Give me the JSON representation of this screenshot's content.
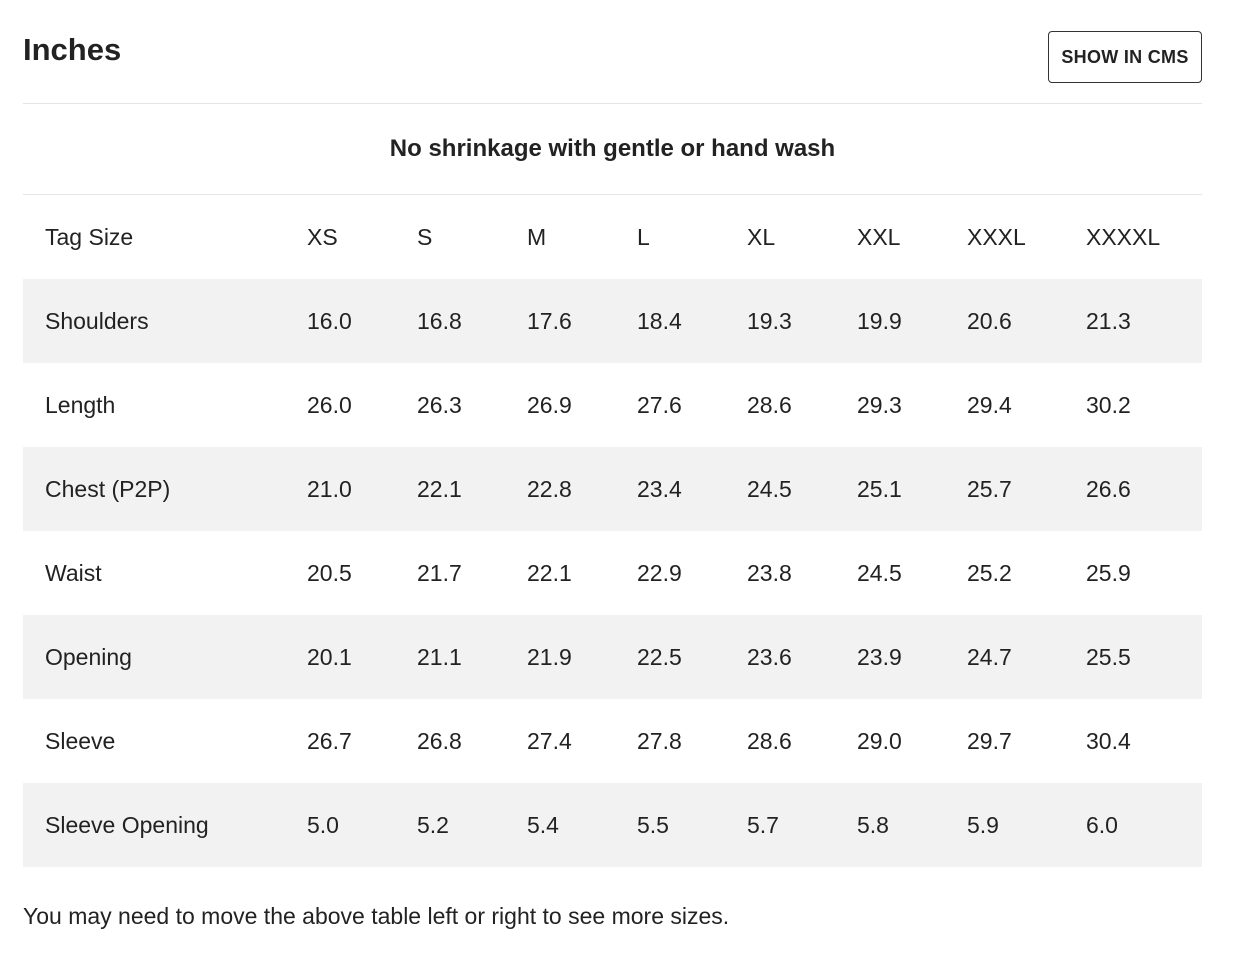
{
  "header": {
    "title": "Inches",
    "cms_button_label": "SHOW IN CMS"
  },
  "note": "No shrinkage with gentle or hand wash",
  "table": {
    "header_label": "Tag Size",
    "sizes": [
      "XS",
      "S",
      "M",
      "L",
      "XL",
      "XXL",
      "XXXL",
      "XXXXL"
    ],
    "rows": [
      {
        "label": "Shoulders",
        "values": [
          "16.0",
          "16.8",
          "17.6",
          "18.4",
          "19.3",
          "19.9",
          "20.6",
          "21.3"
        ]
      },
      {
        "label": "Length",
        "values": [
          "26.0",
          "26.3",
          "26.9",
          "27.6",
          "28.6",
          "29.3",
          "29.4",
          "30.2"
        ]
      },
      {
        "label": "Chest (P2P)",
        "values": [
          "21.0",
          "22.1",
          "22.8",
          "23.4",
          "24.5",
          "25.1",
          "25.7",
          "26.6"
        ]
      },
      {
        "label": "Waist",
        "values": [
          "20.5",
          "21.7",
          "22.1",
          "22.9",
          "23.8",
          "24.5",
          "25.2",
          "25.9"
        ]
      },
      {
        "label": "Opening",
        "values": [
          "20.1",
          "21.1",
          "21.9",
          "22.5",
          "23.6",
          "23.9",
          "24.7",
          "25.5"
        ]
      },
      {
        "label": "Sleeve",
        "values": [
          "26.7",
          "26.8",
          "27.4",
          "27.8",
          "28.6",
          "29.0",
          "29.7",
          "30.4"
        ]
      },
      {
        "label": "Sleeve Opening",
        "values": [
          "5.0",
          "5.2",
          "5.4",
          "5.5",
          "5.7",
          "5.8",
          "5.9",
          "6.0"
        ]
      }
    ]
  },
  "footer_note": "You may need to move the above table left or right to see more sizes."
}
